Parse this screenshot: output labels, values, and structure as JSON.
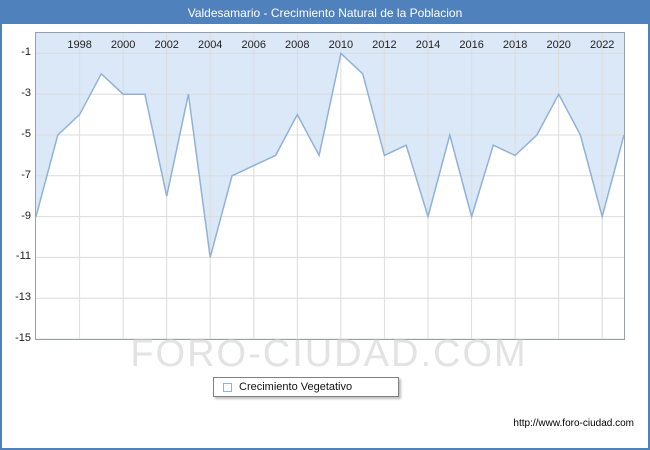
{
  "window": {
    "title": "Valdesamario - Crecimiento Natural de la Poblacion"
  },
  "legend": {
    "label": "Crecimiento Vegetativo"
  },
  "watermark": "FORO-CIUDAD.COM",
  "footer": {
    "url": "http://www.foro-ciudad.com"
  },
  "colors": {
    "header_bg": "#4f81bd",
    "area_fill": "#dbe8f8",
    "line": "#8fb2d9",
    "grid": "#dcdcdc",
    "plot_border": "#9aa0a6",
    "tick_text": "#1f1f1f"
  },
  "chart_data": {
    "type": "area",
    "title": "Valdesamario - Crecimiento Natural de la Poblacion",
    "series_name": "Crecimiento Vegetativo",
    "x": [
      1996,
      1997,
      1998,
      1999,
      2000,
      2001,
      2002,
      2003,
      2004,
      2005,
      2006,
      2007,
      2008,
      2009,
      2010,
      2011,
      2012,
      2013,
      2014,
      2015,
      2016,
      2017,
      2018,
      2019,
      2020,
      2021,
      2022,
      2023
    ],
    "values": [
      -9,
      -5,
      -4,
      -2,
      -3,
      -3,
      -8,
      -3,
      -11,
      -7,
      -6.5,
      -6,
      -4,
      -6,
      -1,
      -2,
      -6,
      -5.5,
      -9,
      -5,
      -9,
      -5.5,
      -6,
      -5,
      -3,
      -5,
      -9,
      -5
    ],
    "xlim": [
      1996,
      2023
    ],
    "ylim": [
      -15,
      0
    ],
    "xticks": [
      1998,
      2000,
      2002,
      2004,
      2006,
      2008,
      2010,
      2012,
      2014,
      2016,
      2018,
      2020,
      2022
    ],
    "yticks": [
      -1,
      -3,
      -5,
      -7,
      -9,
      -11,
      -13,
      -15
    ],
    "grid": true,
    "fill_direction": "above-line-to-top",
    "legend_position": "bottom-center"
  }
}
